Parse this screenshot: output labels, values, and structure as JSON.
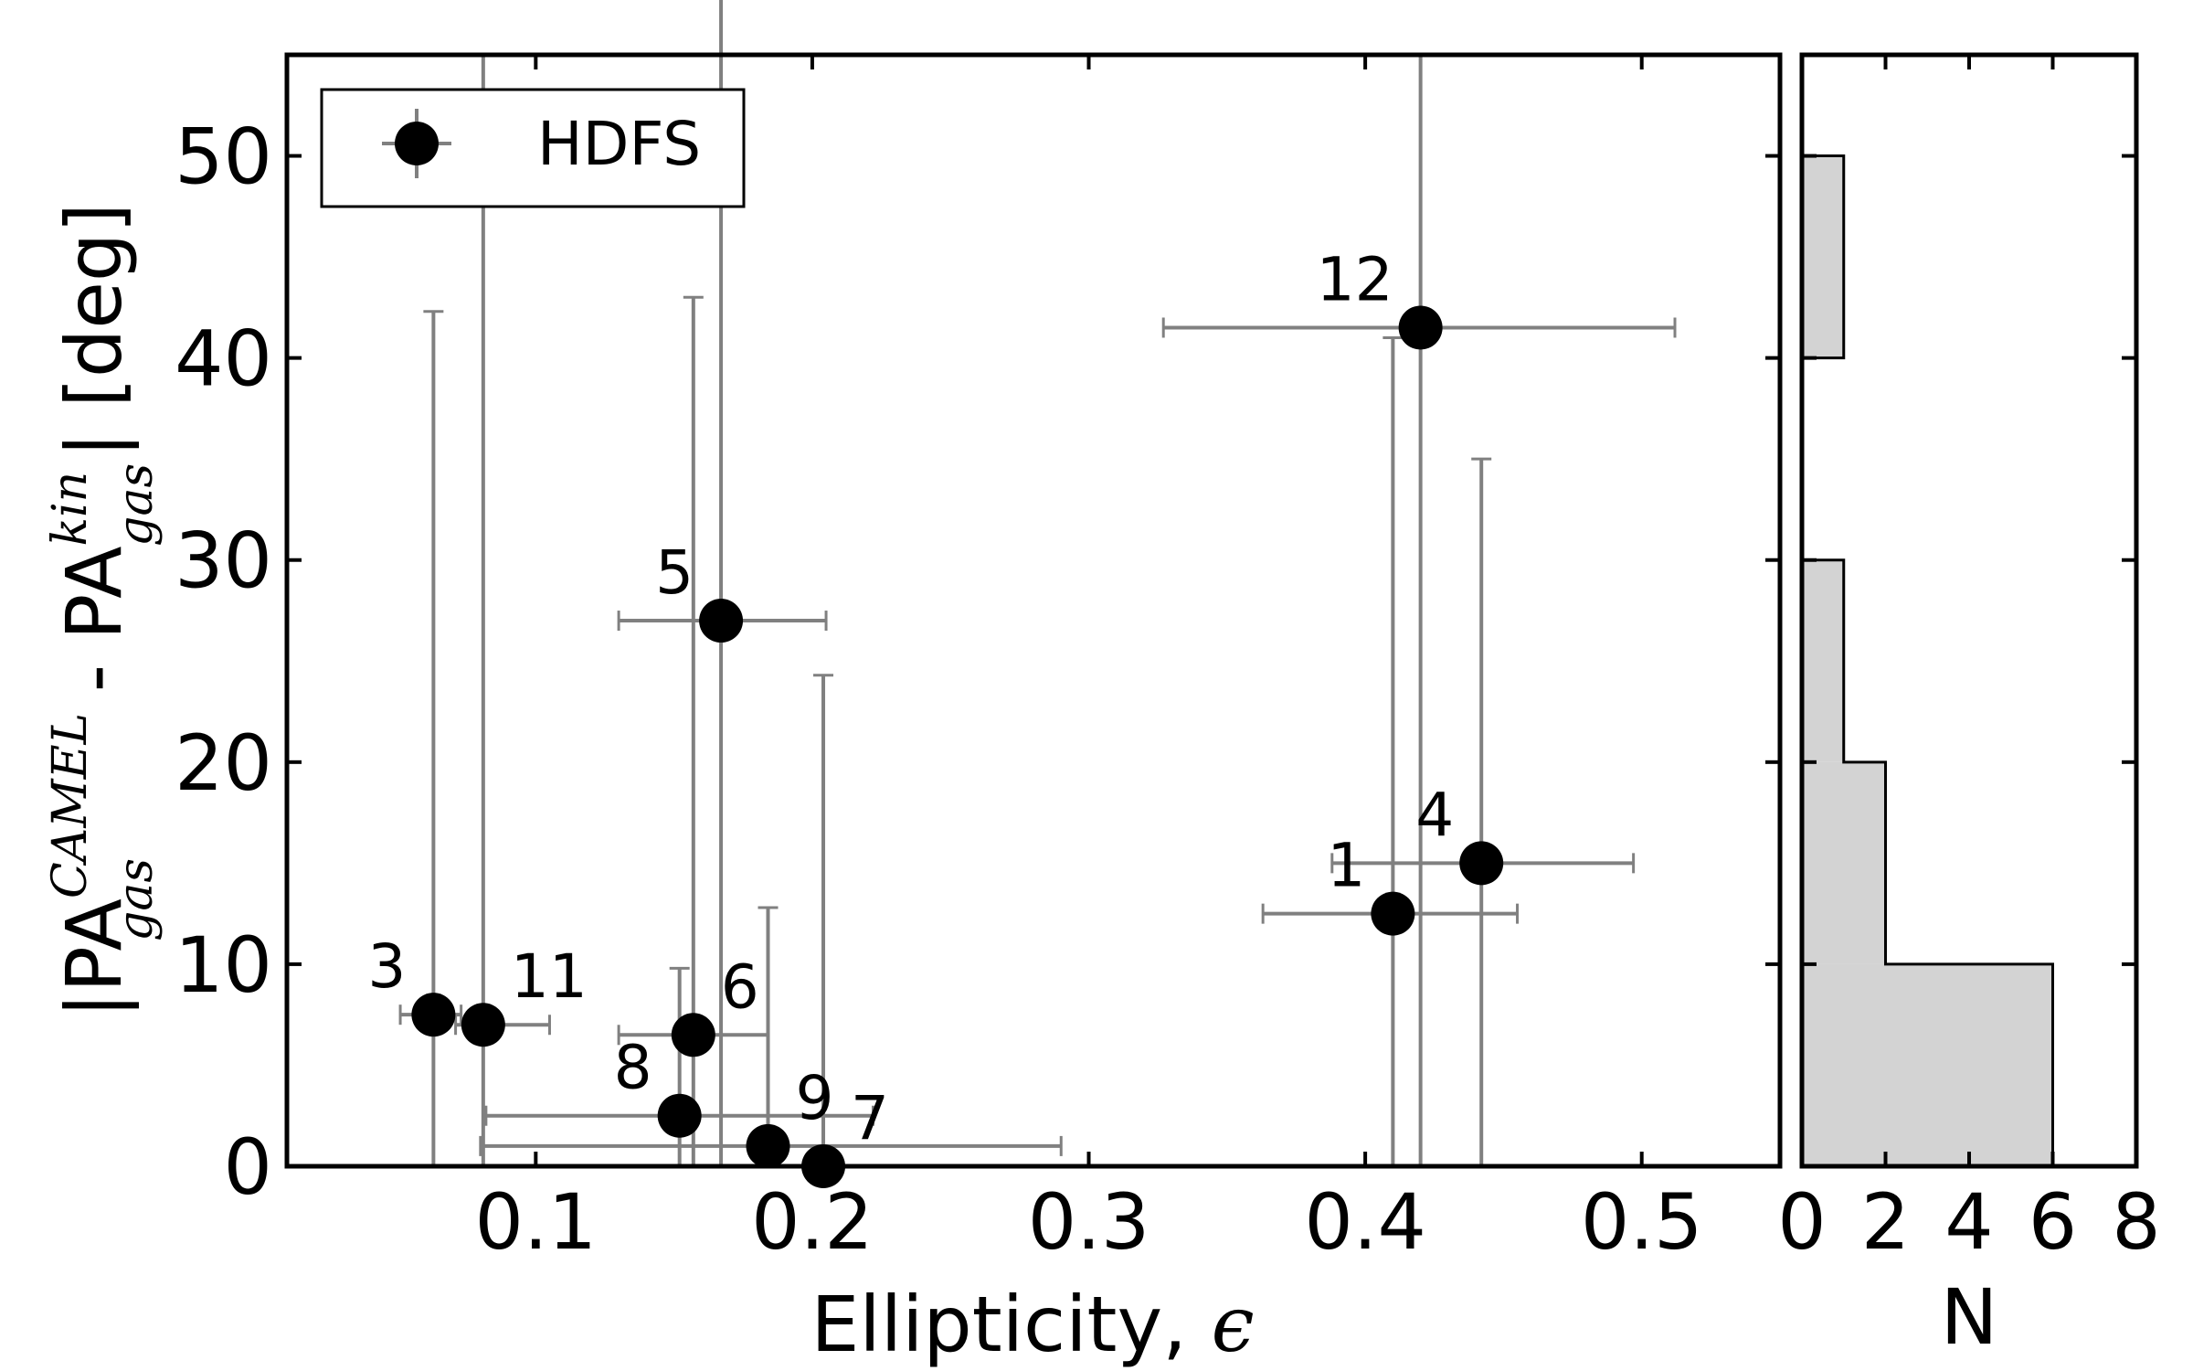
{
  "chart_data": [
    {
      "type": "scatter",
      "title": "",
      "xlabel": "Ellipticity, ",
      "xlabel_symbol": "ϵ",
      "ylabel_parts": {
        "open": "|PA",
        "sup1": "CAMEL",
        "sub1": "gas",
        "mid": " - PA",
        "sup2": "kin",
        "sub2": "gas",
        "close": "|  [deg]"
      },
      "xlim": [
        0.01,
        0.55
      ],
      "ylim": [
        0,
        55
      ],
      "xticks": [
        0.1,
        0.2,
        0.3,
        0.4,
        0.5
      ],
      "xtick_labels": [
        "0.1",
        "0.2",
        "0.3",
        "0.4",
        "0.5"
      ],
      "yticks": [
        0,
        10,
        20,
        30,
        40,
        50
      ],
      "ytick_labels": [
        "0",
        "10",
        "20",
        "30",
        "40",
        "50"
      ],
      "legend": {
        "label": "HDFS",
        "location": "upper-left"
      },
      "colors": {
        "marker": "#000000",
        "errorbar": "#808080"
      },
      "points": [
        {
          "id": "1",
          "x": 0.41,
          "y": 12.5,
          "xerr": [
            0.047,
            0.045
          ],
          "yerr": [
            12.5,
            28.5
          ],
          "label_side": "left"
        },
        {
          "id": "3",
          "x": 0.063,
          "y": 7.5,
          "xerr": [
            0.012,
            0.01
          ],
          "yerr": [
            7.5,
            34.8
          ],
          "label_side": "left"
        },
        {
          "id": "4",
          "x": 0.442,
          "y": 15.0,
          "xerr": [
            0.054,
            0.055
          ],
          "yerr": [
            15.0,
            20.0
          ],
          "label_side": "left"
        },
        {
          "id": "5",
          "x": 0.167,
          "y": 27.0,
          "xerr": [
            0.037,
            0.038
          ],
          "yerr": [
            27.0,
            55.0
          ],
          "label_side": "left"
        },
        {
          "id": "6",
          "x": 0.157,
          "y": 6.5,
          "xerr": [
            0.027,
            0.027
          ],
          "yerr": [
            6.5,
            36.5
          ],
          "label_side": "right"
        },
        {
          "id": "7",
          "x": 0.204,
          "y": 0.0,
          "xerr": [
            0.0,
            0.0
          ],
          "yerr": [
            0.0,
            24.3
          ],
          "label_side": "right"
        },
        {
          "id": "8",
          "x": 0.152,
          "y": 2.5,
          "xerr": [
            0.07,
            0.07
          ],
          "yerr": [
            2.5,
            7.3
          ],
          "label_side": "left"
        },
        {
          "id": "9",
          "x": 0.184,
          "y": 1.0,
          "xerr": [
            0.104,
            0.106
          ],
          "yerr": [
            1.0,
            11.8
          ],
          "label_side": "right"
        },
        {
          "id": "11",
          "x": 0.081,
          "y": 7.0,
          "xerr": [
            0.01,
            0.024
          ],
          "yerr": [
            7.0,
            48.0
          ],
          "label_side": "right"
        },
        {
          "id": "12",
          "x": 0.42,
          "y": 41.5,
          "xerr": [
            0.093,
            0.092
          ],
          "yerr": [
            41.5,
            13.5
          ],
          "label_side": "left"
        }
      ]
    },
    {
      "type": "bar",
      "orientation": "horizontal",
      "xlabel": "N",
      "xlim": [
        0,
        8
      ],
      "xticks": [
        0,
        2,
        4,
        6,
        8
      ],
      "xtick_labels": [
        "0",
        "2",
        "4",
        "6",
        "8"
      ],
      "ylim": [
        0,
        55
      ],
      "bins": [
        {
          "range": [
            0,
            10
          ],
          "count": 6
        },
        {
          "range": [
            10,
            20
          ],
          "count": 2
        },
        {
          "range": [
            20,
            30
          ],
          "count": 1
        },
        {
          "range": [
            30,
            40
          ],
          "count": 0
        },
        {
          "range": [
            40,
            50
          ],
          "count": 1
        }
      ],
      "colors": {
        "fill": "#d3d3d3",
        "edge": "#000000"
      }
    }
  ]
}
